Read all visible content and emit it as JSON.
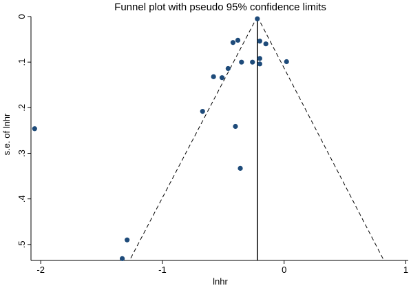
{
  "chart_data": {
    "type": "scatter",
    "title": "Funnel plot with pseudo 95% confidence limits",
    "xlabel": "lnhr",
    "ylabel": "s.e. of lnhr",
    "xlim": [
      -2.08,
      1.02
    ],
    "ylim": [
      0,
      0.535
    ],
    "y_reversed": true,
    "x_ticks": [
      -2,
      -1,
      0,
      1
    ],
    "x_tick_labels": [
      "-2",
      "-1",
      "0",
      "1"
    ],
    "y_ticks": [
      0,
      0.1,
      0.2,
      0.3,
      0.4,
      0.5
    ],
    "y_tick_labels": [
      "0",
      ".1",
      ".2",
      ".3",
      ".4",
      ".5"
    ],
    "grid": false,
    "legend": "none",
    "pooled_estimate": -0.22,
    "funnel_limits": {
      "apex": [
        -0.22,
        0
      ],
      "left_base": [
        -1.27,
        0.535
      ],
      "right_base": [
        0.82,
        0.535
      ]
    },
    "colors": {
      "points": "#1e4b7a",
      "lines": "#000000"
    },
    "points": [
      {
        "x": -0.22,
        "y": 0.005
      },
      {
        "x": -0.38,
        "y": 0.052
      },
      {
        "x": -0.42,
        "y": 0.057
      },
      {
        "x": -0.2,
        "y": 0.054
      },
      {
        "x": -0.15,
        "y": 0.06
      },
      {
        "x": -0.2,
        "y": 0.092
      },
      {
        "x": -0.35,
        "y": 0.1
      },
      {
        "x": -0.26,
        "y": 0.1
      },
      {
        "x": -0.2,
        "y": 0.104
      },
      {
        "x": 0.02,
        "y": 0.099
      },
      {
        "x": -0.46,
        "y": 0.114
      },
      {
        "x": -0.58,
        "y": 0.132
      },
      {
        "x": -0.51,
        "y": 0.134
      },
      {
        "x": -0.67,
        "y": 0.208
      },
      {
        "x": -0.4,
        "y": 0.241
      },
      {
        "x": -2.05,
        "y": 0.246
      },
      {
        "x": -0.36,
        "y": 0.333
      },
      {
        "x": -1.29,
        "y": 0.49
      },
      {
        "x": -1.33,
        "y": 0.531
      }
    ]
  }
}
